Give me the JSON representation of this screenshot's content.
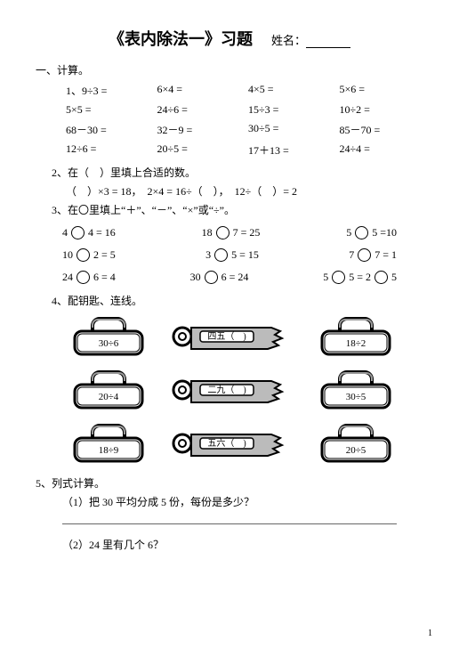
{
  "title": "《表内除法一》习题",
  "name_label": "姓名：",
  "section1": {
    "heading": "一、计算。"
  },
  "q1": {
    "label": "1、9÷3 =",
    "eqs": [
      "6×4 =",
      "4×5 =",
      "5×6 =",
      "5×5 =",
      "24÷6 =",
      "15÷3 =",
      "10÷2 =",
      "68－30 =",
      "32－9 =",
      "30÷5 =",
      "85－70 =",
      "12÷6 =",
      "20÷5 =",
      "17＋13 =",
      "24÷4 ="
    ]
  },
  "q2": {
    "label": "2、在（　）里填上合适的数。",
    "line": "（　）×3 = 18，　2×4 = 16÷（　），　12÷（　）= 2"
  },
  "q3": {
    "label": "3、在〇里填上“＋”、“－”、“×”或“÷”。",
    "rows": [
      [
        [
          "4",
          "4 = 16"
        ],
        [
          "18",
          "7 = 25"
        ],
        [
          "5",
          "5 =10"
        ]
      ],
      [
        [
          "10",
          "2 = 5"
        ],
        [
          "3",
          "5 = 15"
        ],
        [
          "7",
          "7 = 1"
        ]
      ],
      [
        [
          "24",
          "6 = 4"
        ],
        [
          "30",
          "6 = 24"
        ],
        [
          "5",
          "5 = 2",
          "5"
        ]
      ]
    ]
  },
  "q4": {
    "label": "4、配钥匙、连线。",
    "locks_left": [
      "30÷6",
      "20÷4",
      "18÷9"
    ],
    "keys": [
      "四五（",
      "二九（",
      "五六（"
    ],
    "locks_right": [
      "18÷2",
      "30÷5",
      "20÷5"
    ],
    "lock_fill": "#ffffff",
    "lock_stroke": "#000000",
    "key_fill": "#aaaaaa"
  },
  "q5": {
    "label": "5、列式计算。",
    "p1": "（1）把 30 平均分成 5 份，每份是多少？",
    "p2": "（2）24 里有几个 6？"
  },
  "page": "1"
}
